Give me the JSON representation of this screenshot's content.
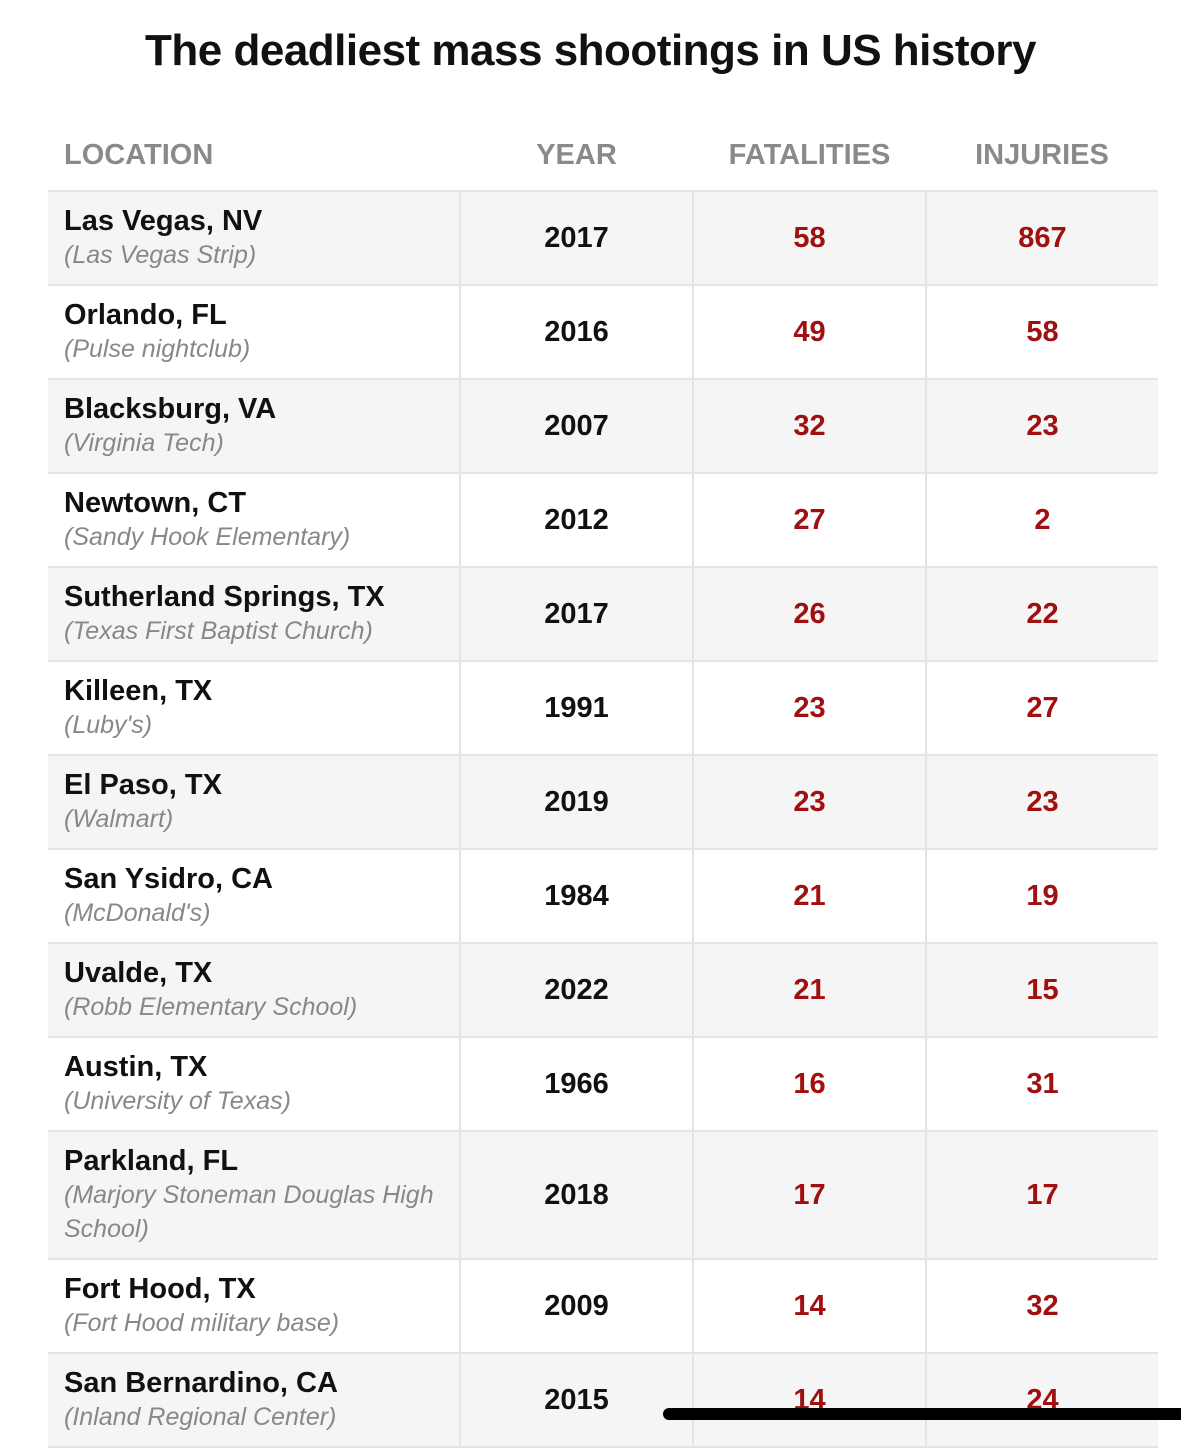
{
  "chart_data": {
    "type": "table",
    "title": "The deadliest mass shootings in US history",
    "columns": [
      "LOCATION",
      "YEAR",
      "FATALITIES",
      "INJURIES"
    ],
    "rows": [
      {
        "location": "Las Vegas, NV",
        "place": "(Las Vegas Strip)",
        "year": "2017",
        "fatalities": "58",
        "injuries": "867"
      },
      {
        "location": "Orlando, FL",
        "place": "(Pulse nightclub)",
        "year": "2016",
        "fatalities": "49",
        "injuries": "58"
      },
      {
        "location": "Blacksburg, VA",
        "place": "(Virginia Tech)",
        "year": "2007",
        "fatalities": "32",
        "injuries": "23"
      },
      {
        "location": "Newtown, CT",
        "place": "(Sandy Hook Elementary)",
        "year": "2012",
        "fatalities": "27",
        "injuries": "2"
      },
      {
        "location": "Sutherland Springs, TX",
        "place": "(Texas First Baptist Church)",
        "year": "2017",
        "fatalities": "26",
        "injuries": "22"
      },
      {
        "location": "Killeen, TX",
        "place": "(Luby's)",
        "year": "1991",
        "fatalities": "23",
        "injuries": "27"
      },
      {
        "location": "El Paso, TX",
        "place": "(Walmart)",
        "year": "2019",
        "fatalities": "23",
        "injuries": "23"
      },
      {
        "location": "San Ysidro, CA",
        "place": "(McDonald's)",
        "year": "1984",
        "fatalities": "21",
        "injuries": "19"
      },
      {
        "location": "Uvalde, TX",
        "place": "(Robb Elementary School)",
        "year": "2022",
        "fatalities": "21",
        "injuries": "15"
      },
      {
        "location": "Austin, TX",
        "place": "(University of Texas)",
        "year": "1966",
        "fatalities": "16",
        "injuries": "31"
      },
      {
        "location": "Parkland, FL",
        "place": "(Marjory Stoneman Douglas High School)",
        "year": "2018",
        "fatalities": "17",
        "injuries": "17"
      },
      {
        "location": "Fort Hood, TX",
        "place": "(Fort Hood military base)",
        "year": "2009",
        "fatalities": "14",
        "injuries": "32"
      },
      {
        "location": "San Bernardino, CA",
        "place": "(Inland Regional Center)",
        "year": "2015",
        "fatalities": "14",
        "injuries": "24"
      }
    ]
  },
  "colors": {
    "value_red": "#a01010",
    "header_gray": "#8a8a8a",
    "row_alt": "#f5f5f5",
    "divider": "#e4e4e4"
  }
}
